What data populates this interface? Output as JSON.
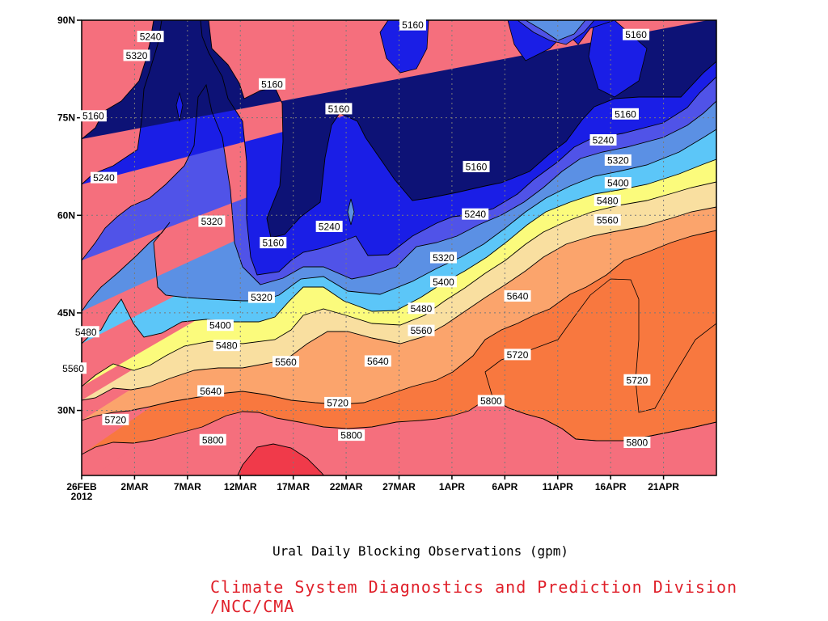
{
  "chart_data": {
    "type": "contour",
    "title": "",
    "caption": "Ural Daily Blocking Observations (gpm)",
    "credit": "Climate System Diagnostics and Prediction Division /NCC/CMA",
    "credit_color": "#e0202a",
    "xlabel": "",
    "ylabel": "",
    "x_ticks": [
      "26FEB",
      "2MAR",
      "7MAR",
      "12MAR",
      "17MAR",
      "22MAR",
      "27MAR",
      "1APR",
      "6APR",
      "11APR",
      "16APR",
      "21APR"
    ],
    "x_year": "2012",
    "y_ticks": [
      "90N",
      "75N",
      "60N",
      "45N",
      "30N"
    ],
    "xlim_days": [
      0,
      60
    ],
    "ylim_deg": [
      20,
      90
    ],
    "grid": true,
    "levels": [
      5160,
      5240,
      5320,
      5400,
      5480,
      5560,
      5640,
      5720,
      5800
    ],
    "fill_colors": [
      "#0d1276",
      "#1a1ee6",
      "#5053e8",
      "#5b90e4",
      "#5cc6f8",
      "#fbfb7c",
      "#f9dfa0",
      "#fba46c",
      "#f8783f",
      "#f56f7d",
      "#f03a4a"
    ],
    "contour_labels": [
      {
        "value": "5240",
        "day": 6.5,
        "lat": 87.5
      },
      {
        "value": "5320",
        "day": 5.2,
        "lat": 84.6
      },
      {
        "value": "5160",
        "day": 1.1,
        "lat": 75.3
      },
      {
        "value": "5160",
        "day": 18.0,
        "lat": 80.2
      },
      {
        "value": "5160",
        "day": 24.3,
        "lat": 76.4
      },
      {
        "value": "5160",
        "day": 31.3,
        "lat": 89.3
      },
      {
        "value": "5160",
        "day": 52.4,
        "lat": 87.8
      },
      {
        "value": "5160",
        "day": 51.4,
        "lat": 75.6
      },
      {
        "value": "5240",
        "day": 2.1,
        "lat": 65.8
      },
      {
        "value": "5240",
        "day": 49.3,
        "lat": 71.6
      },
      {
        "value": "5320",
        "day": 50.7,
        "lat": 68.5
      },
      {
        "value": "5160",
        "day": 37.3,
        "lat": 67.5
      },
      {
        "value": "5400",
        "day": 50.7,
        "lat": 65.0
      },
      {
        "value": "5480",
        "day": 49.7,
        "lat": 62.3
      },
      {
        "value": "5240",
        "day": 37.2,
        "lat": 60.2
      },
      {
        "value": "5560",
        "day": 49.7,
        "lat": 59.3
      },
      {
        "value": "5320",
        "day": 12.3,
        "lat": 59.1
      },
      {
        "value": "5240",
        "day": 23.4,
        "lat": 58.3
      },
      {
        "value": "5160",
        "day": 18.1,
        "lat": 55.8
      },
      {
        "value": "5320",
        "day": 34.2,
        "lat": 53.5
      },
      {
        "value": "5400",
        "day": 34.2,
        "lat": 49.8
      },
      {
        "value": "5640",
        "day": 41.2,
        "lat": 47.6
      },
      {
        "value": "5320",
        "day": 17.0,
        "lat": 47.4
      },
      {
        "value": "5480",
        "day": 32.1,
        "lat": 45.7
      },
      {
        "value": "5400",
        "day": 13.1,
        "lat": 43.1
      },
      {
        "value": "5560",
        "day": 32.1,
        "lat": 42.3
      },
      {
        "value": "5480",
        "day": 0.4,
        "lat": 42.1
      },
      {
        "value": "5480",
        "day": 13.7,
        "lat": 40.0
      },
      {
        "value": "5720",
        "day": 41.2,
        "lat": 38.6
      },
      {
        "value": "5560",
        "day": 19.3,
        "lat": 37.5
      },
      {
        "value": "5640",
        "day": 28.0,
        "lat": 37.6
      },
      {
        "value": "5560",
        "day": -0.8,
        "lat": 36.5
      },
      {
        "value": "5720",
        "day": 52.5,
        "lat": 34.7
      },
      {
        "value": "5640",
        "day": 12.2,
        "lat": 33.0
      },
      {
        "value": "5800",
        "day": 38.7,
        "lat": 31.5
      },
      {
        "value": "5720",
        "day": 24.2,
        "lat": 31.2
      },
      {
        "value": "5720",
        "day": 3.2,
        "lat": 28.6
      },
      {
        "value": "5800",
        "day": 25.5,
        "lat": 26.2
      },
      {
        "value": "5800",
        "day": 12.4,
        "lat": 25.5
      },
      {
        "value": "5800",
        "day": 52.5,
        "lat": 25.1
      }
    ]
  }
}
